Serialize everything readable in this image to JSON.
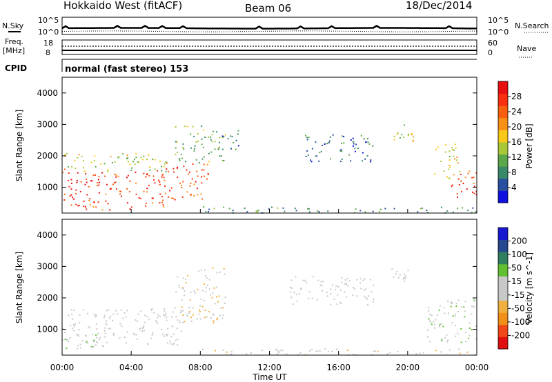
{
  "header": {
    "radar": "Hokkaido West (fitACF)",
    "beam": "Beam 06",
    "date": "18/Dec/2014"
  },
  "top_panel": {
    "nsky_label": "N.Sky",
    "nsearch_label": "N.Search",
    "noise_ticks_left": [
      "10^5",
      "10^0"
    ],
    "noise_ticks_right": [
      "10^5",
      "10^0"
    ],
    "freq_label": "Freq.",
    "freq_unit": "[MHz]",
    "freq_ticks": [
      "18",
      "8"
    ],
    "nave_label": "Nave",
    "nave_ticks": [
      "60",
      "0"
    ],
    "cpid_label": "CPID",
    "cpid_value": "normal (fast stereo) 153"
  },
  "colors": {
    "power_scale": [
      "#1010e0",
      "#2b4fa0",
      "#3a8a6a",
      "#5aa84a",
      "#a8c838",
      "#f8c818",
      "#f89018",
      "#f86010",
      "#f83010",
      "#e81010"
    ],
    "velocity_scale": [
      "#e01010",
      "#f04818",
      "#f09018",
      "#f0b040",
      "#c8c8c8",
      "#c8c8c8",
      "#60c030",
      "#308060",
      "#284890",
      "#1818d0"
    ]
  },
  "chart_data": [
    {
      "type": "heatmap",
      "name": "power-panel",
      "xlabel": "",
      "ylabel": "Slant Range [km]",
      "xlim": [
        0,
        24
      ],
      "ylim": [
        180,
        4500
      ],
      "yticks": [
        "1000",
        "2000",
        "3000",
        "4000"
      ],
      "colorbar": {
        "label": "Power [dB]",
        "tick_labels": [
          "4",
          "8",
          "12",
          "16",
          "20",
          "24",
          "28"
        ],
        "range": [
          0,
          30
        ]
      },
      "regions": [
        {
          "t": [
            0.0,
            1.5
          ],
          "r": [
            250,
            1600
          ],
          "value": 26
        },
        {
          "t": [
            1.5,
            4.0
          ],
          "r": [
            300,
            1500
          ],
          "value": 25
        },
        {
          "t": [
            4.0,
            6.0
          ],
          "r": [
            400,
            1600
          ],
          "value": 24
        },
        {
          "t": [
            6.0,
            8.5
          ],
          "r": [
            600,
            1800
          ],
          "value": 24
        },
        {
          "t": [
            0.0,
            6.0
          ],
          "r": [
            1500,
            2100
          ],
          "value": 14
        },
        {
          "t": [
            6.5,
            9.5
          ],
          "r": [
            1800,
            3000
          ],
          "value": 11
        },
        {
          "t": [
            9.0,
            10.2
          ],
          "r": [
            2200,
            2900
          ],
          "value": 7
        },
        {
          "t": [
            14.0,
            18.0
          ],
          "r": [
            1800,
            2700
          ],
          "value": 6
        },
        {
          "t": [
            19.0,
            20.5
          ],
          "r": [
            2400,
            3000
          ],
          "value": 14
        },
        {
          "t": [
            21.5,
            23.0
          ],
          "r": [
            1300,
            2400
          ],
          "value": 16
        },
        {
          "t": [
            22.5,
            24.0
          ],
          "r": [
            700,
            1600
          ],
          "value": 25
        },
        {
          "t": [
            8.0,
            24.0
          ],
          "r": [
            200,
            400
          ],
          "value": 8
        }
      ]
    },
    {
      "type": "heatmap",
      "name": "velocity-panel",
      "xlabel": "Time UT",
      "ylabel": "Slant Range [km]",
      "xlim": [
        0,
        24
      ],
      "ylim": [
        180,
        4500
      ],
      "xticks": [
        "00:00",
        "04:00",
        "08:00",
        "12:00",
        "16:00",
        "20:00",
        "00:00"
      ],
      "yticks": [
        "1000",
        "2000",
        "3000",
        "4000"
      ],
      "colorbar": {
        "label": "Velocity [m s^-1]",
        "tick_labels": [
          "-200",
          "-100",
          "-50",
          "-15",
          "15",
          "50",
          "100",
          "200"
        ],
        "range": [
          -250,
          250
        ]
      },
      "regions": [
        {
          "t": [
            0.0,
            3.0
          ],
          "r": [
            400,
            1700
          ],
          "value": 10
        },
        {
          "t": [
            0.0,
            2.0
          ],
          "r": [
            400,
            900
          ],
          "value": 40
        },
        {
          "t": [
            3.0,
            7.0
          ],
          "r": [
            500,
            1700
          ],
          "value": -5
        },
        {
          "t": [
            6.5,
            9.5
          ],
          "r": [
            1200,
            3000
          ],
          "value": -40
        },
        {
          "t": [
            13.0,
            18.0
          ],
          "r": [
            1800,
            2700
          ],
          "value": 20
        },
        {
          "t": [
            19.0,
            20.5
          ],
          "r": [
            2400,
            3000
          ],
          "value": 0
        },
        {
          "t": [
            21.0,
            24.0
          ],
          "r": [
            600,
            2000
          ],
          "value": 35
        },
        {
          "t": [
            8.0,
            24.0
          ],
          "r": [
            200,
            400
          ],
          "value": -30
        }
      ]
    }
  ]
}
